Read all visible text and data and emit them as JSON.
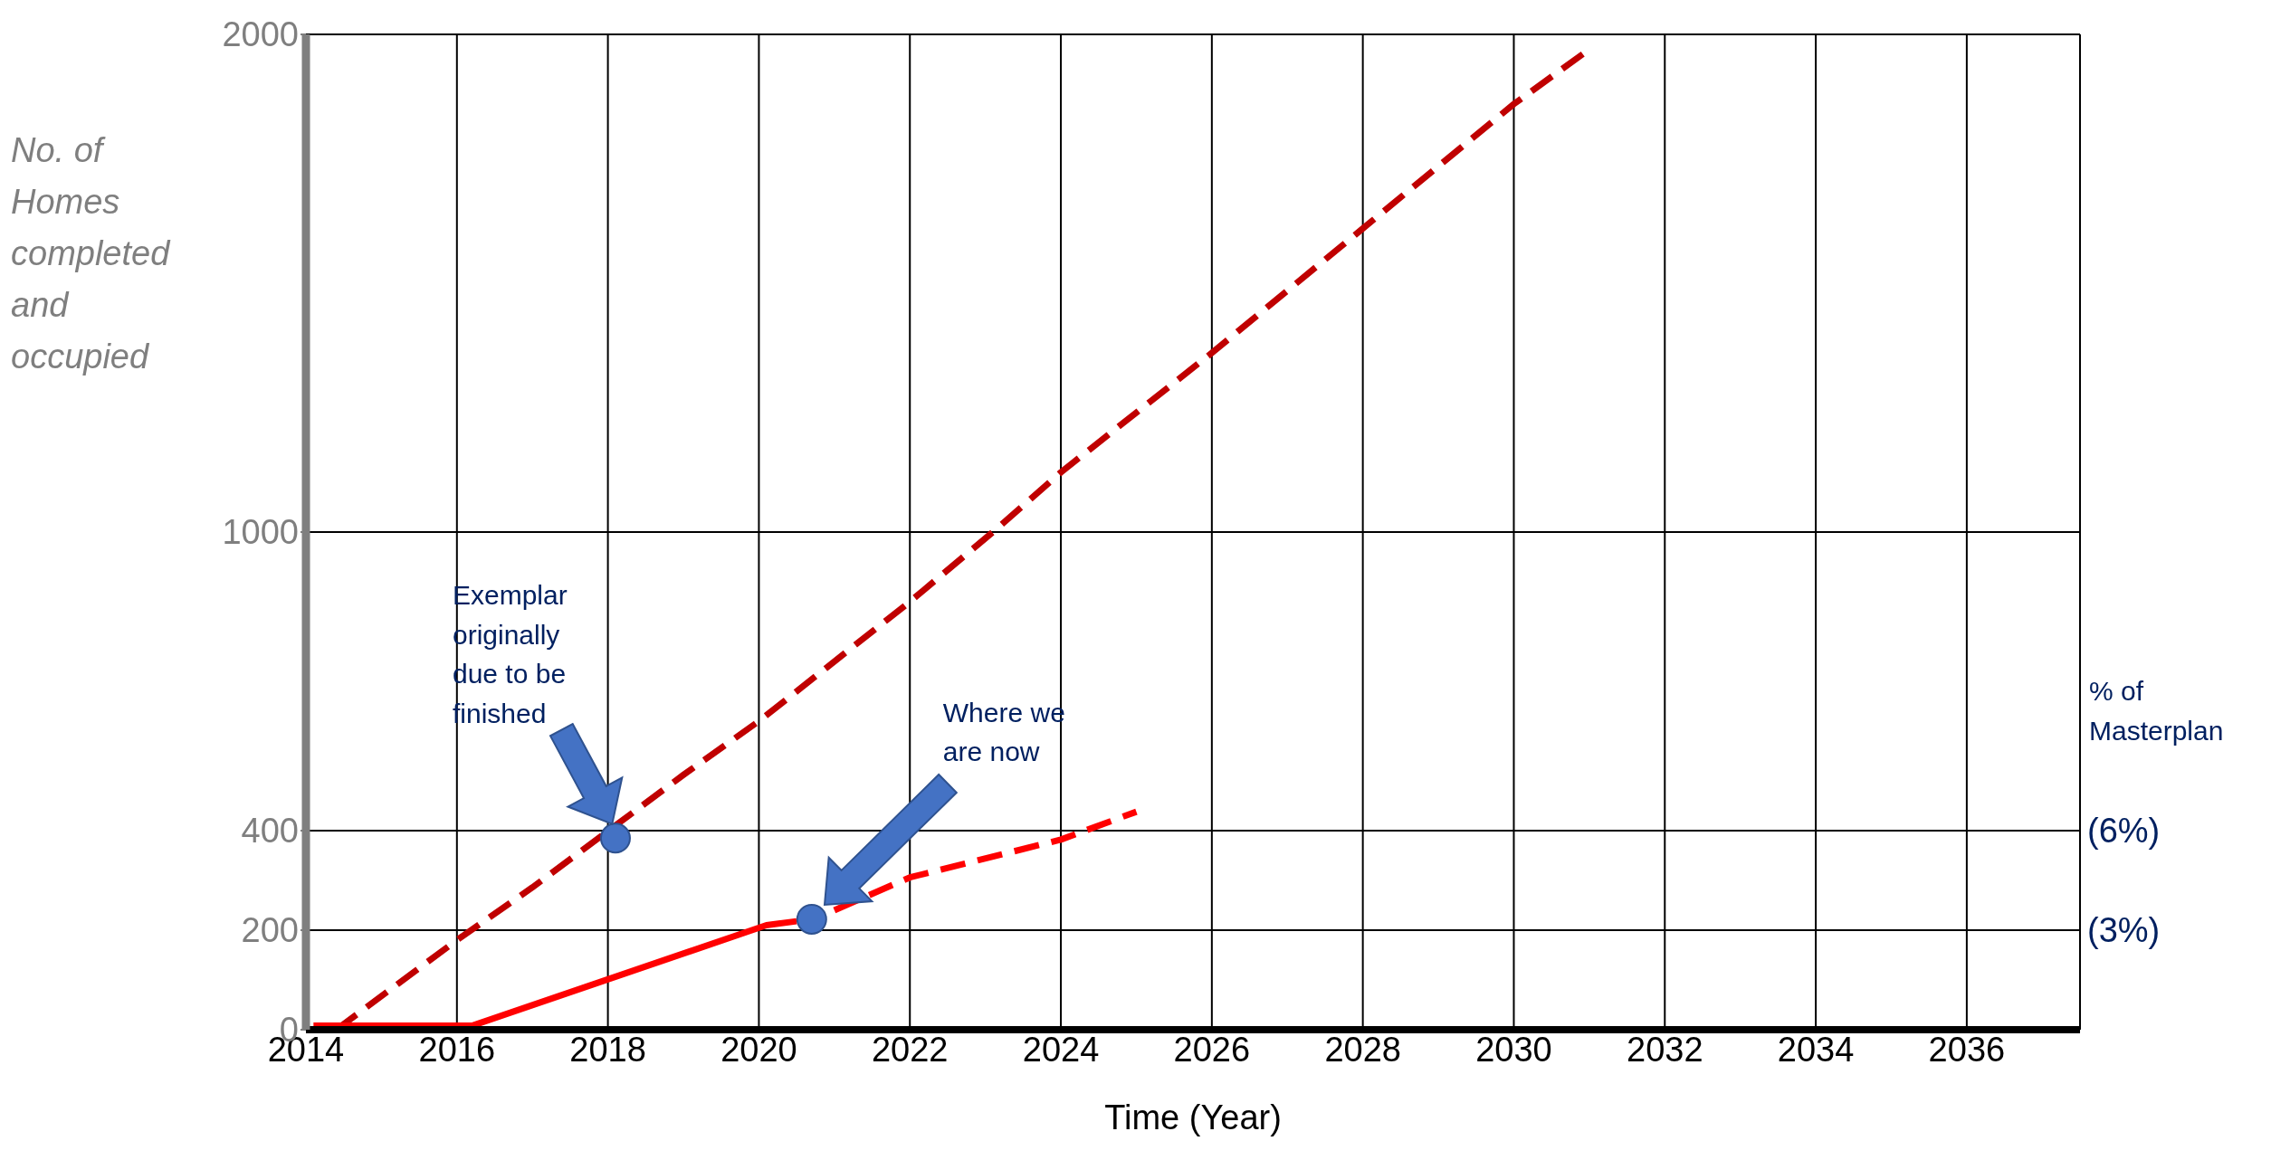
{
  "chart_data": {
    "type": "line",
    "xlabel": "Time (Year)",
    "ylabel": "No. of Homes completed and occupied",
    "xlim": [
      2014,
      2037.5
    ],
    "xticks": [
      2014,
      2016,
      2018,
      2020,
      2022,
      2024,
      2026,
      2028,
      2030,
      2032,
      2034,
      2036
    ],
    "ylim": [
      0,
      2000
    ],
    "yticks": [
      0,
      200,
      400,
      1000,
      2000
    ],
    "grid": true,
    "y2label": "% of Masterplan",
    "y2lim": [
      0,
      30
    ],
    "y2ticks": [
      {
        "value": 3,
        "label": "(3%)"
      },
      {
        "value": 6,
        "label": "(6%)"
      }
    ],
    "series": [
      {
        "color": "#c00000",
        "line_style": "dashed",
        "x": [
          2014.4,
          2016,
          2017,
          2019,
          2020,
          2022,
          2023.1,
          2024,
          2026,
          2028,
          2030,
          2031
        ],
        "values": [
          0,
          180,
          286,
          512,
          620,
          860,
          1000,
          1120,
          1360,
          1610,
          1860,
          1970
        ]
      },
      {
        "color": "#ff0000",
        "line_style": "solid",
        "x": [
          2014.1,
          2016.2,
          2020.1,
          2020.5
        ],
        "values": [
          8,
          8,
          210,
          218
        ]
      },
      {
        "color": "#ff0000",
        "line_style": "dashed",
        "x": [
          2021,
          2022,
          2024,
          2025
        ],
        "values": [
          240,
          306,
          382,
          438
        ]
      },
      {
        "type": "scatter",
        "color": "#4472c4",
        "marker": "circle",
        "x": [
          2018.1,
          2020.7
        ],
        "values": [
          385,
          222
        ]
      }
    ],
    "annotations": [
      "Exemplar originally due to be finished",
      "Where we are now"
    ]
  }
}
